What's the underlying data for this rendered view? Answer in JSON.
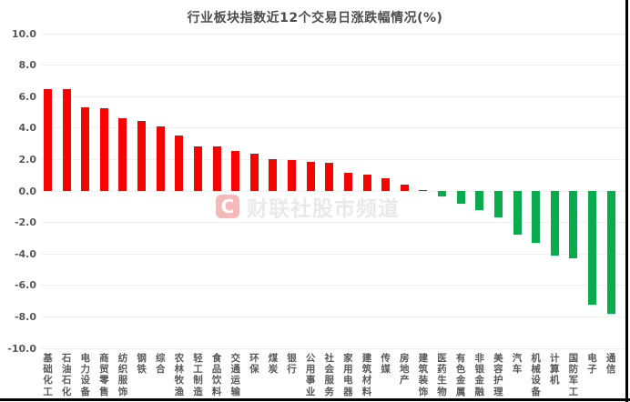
{
  "title": "行业板块指数近12个交易日涨跌幅情况(%)",
  "watermark": {
    "logo": "C",
    "text": "财联社股市频道"
  },
  "colors": {
    "positive_bar": "#f50400",
    "negative_bar": "#09ab4d",
    "gridline": "#efefef",
    "title_text": "#4d4d4d",
    "axis_text": "#595959",
    "watermark_box": "#f5b9b9",
    "watermark_text": "#e9e9e9"
  },
  "chart_data": {
    "type": "bar",
    "title": "行业板块指数近12个交易日涨跌幅情况(%)",
    "categories": [
      "基础化工",
      "石油石化",
      "电力设备",
      "商贸零售",
      "纺织服饰",
      "钢铁",
      "综合",
      "农林牧渔",
      "轻工制造",
      "食品饮料",
      "交通运输",
      "环保",
      "煤炭",
      "银行",
      "公用事业",
      "社会服务",
      "家用电器",
      "建筑材料",
      "传媒",
      "房地产",
      "建筑装饰",
      "医药生物",
      "有色金属",
      "非银金融",
      "美容护理",
      "汽车",
      "机械设备",
      "计算机",
      "国防军工",
      "电子",
      "通信"
    ],
    "values": [
      6.5,
      6.45,
      5.3,
      5.28,
      4.65,
      4.45,
      4.1,
      3.5,
      2.85,
      2.85,
      2.55,
      2.35,
      2.0,
      1.95,
      1.85,
      1.78,
      1.15,
      1.05,
      0.8,
      0.4,
      0.08,
      -0.35,
      -0.8,
      -1.2,
      -1.65,
      -2.75,
      -3.3,
      -4.1,
      -4.3,
      -7.2,
      -7.8
    ],
    "xlabel": "",
    "ylabel": "",
    "ylim": [
      -10,
      10
    ],
    "ytick_interval": 2,
    "ytick_labels": [
      "10.0",
      "8.0",
      "6.0",
      "4.0",
      "2.0",
      "0.0",
      "-2.0",
      "-4.0",
      "-6.0",
      "-8.0",
      "-10.0"
    ],
    "grid": true,
    "legend": "none",
    "bar_color_rule": "positive=red, negative=green",
    "x_label_orientation": "vertical"
  }
}
